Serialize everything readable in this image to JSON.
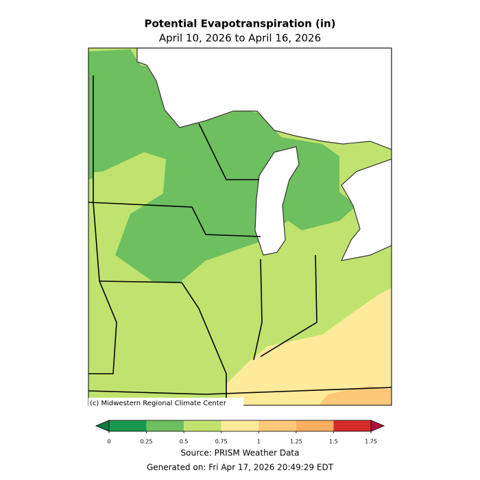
{
  "header": {
    "title": "Potential Evapotranspiration (in)",
    "subtitle": "April 10, 2026 to April 16, 2026"
  },
  "map": {
    "credit": "(c) Midwestern Regional Climate Center"
  },
  "colorbar": {
    "bounds": [
      0,
      0.25,
      0.5,
      0.75,
      1,
      1.25,
      1.5,
      1.75
    ],
    "colors": [
      "#1a9850",
      "#6dbf5f",
      "#c0e36f",
      "#feea9b",
      "#fdc878",
      "#fdae61",
      "#d42b2b"
    ],
    "under_color": "#0f7a3e",
    "over_color": "#b3103a"
  },
  "footer": {
    "source": "Source: PRISM Weather Data",
    "generated": "Generated on: Fri Apr 17, 2026 20:49:29 EDT"
  }
}
